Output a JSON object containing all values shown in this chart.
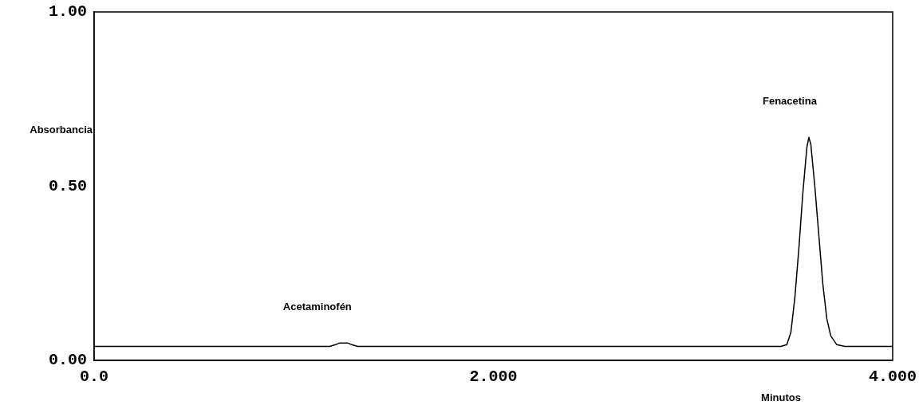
{
  "chart_data": {
    "type": "line",
    "xlabel": "Minutos",
    "ylabel": "Absorbancia",
    "xlim": [
      0,
      4
    ],
    "ylim": [
      0,
      1
    ],
    "xticks": [
      {
        "value": 0,
        "label": "0.0"
      },
      {
        "value": 2,
        "label": "2.000"
      },
      {
        "value": 4,
        "label": "4.000"
      }
    ],
    "yticks": [
      {
        "value": 0,
        "label": "0.00"
      },
      {
        "value": 0.5,
        "label": "0.50"
      },
      {
        "value": 1,
        "label": "1.00"
      }
    ],
    "series": [
      {
        "color": "#000000",
        "x": [
          0,
          1.18,
          1.21,
          1.23,
          1.25,
          1.27,
          1.29,
          1.32,
          3.44,
          3.47,
          3.49,
          3.51,
          3.53,
          3.55,
          3.57,
          3.58,
          3.59,
          3.61,
          3.63,
          3.65,
          3.67,
          3.69,
          3.72,
          3.76,
          4
        ],
        "values": [
          0.04,
          0.04,
          0.045,
          0.05,
          0.05,
          0.05,
          0.045,
          0.04,
          0.04,
          0.045,
          0.08,
          0.18,
          0.32,
          0.48,
          0.61,
          0.64,
          0.62,
          0.5,
          0.36,
          0.22,
          0.12,
          0.07,
          0.045,
          0.04,
          0.04
        ]
      }
    ],
    "annotations": [
      {
        "text": "Acetaminofén",
        "x": 1.25,
        "y": 0.05
      },
      {
        "text": "Fenacetina",
        "x": 3.58,
        "y": 0.64
      }
    ],
    "grid": false,
    "legend": false,
    "marker": "none",
    "line_style": "solid"
  }
}
